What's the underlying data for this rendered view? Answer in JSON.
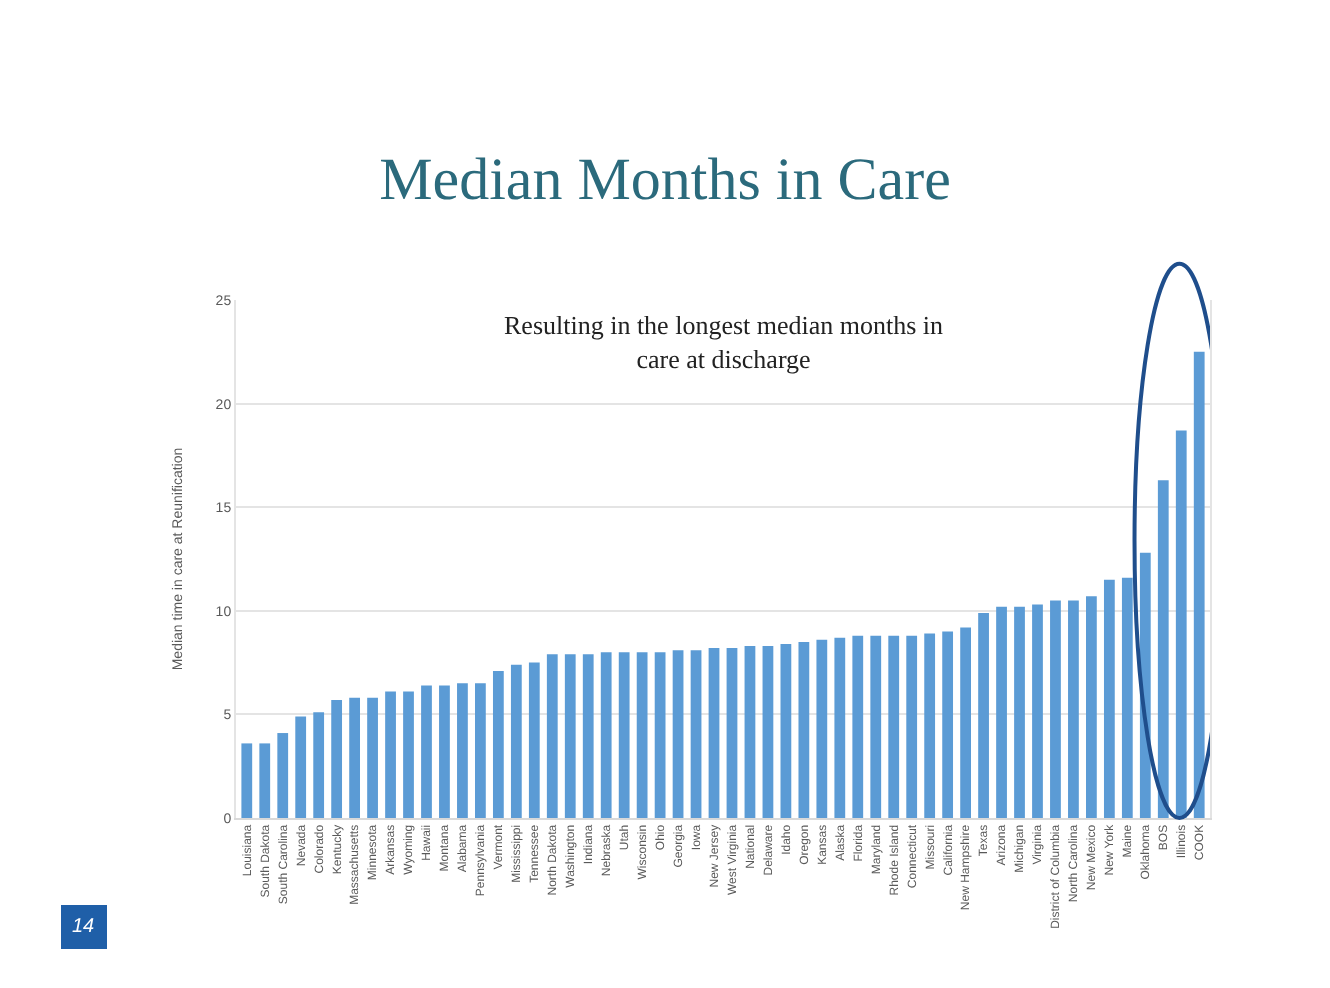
{
  "chart_data": {
    "type": "bar",
    "title": "Median Months in Care",
    "ylabel": "Median time in care at Reunification",
    "categories": [
      "Louisiana",
      "South Dakota",
      "South Carolina",
      "Nevada",
      "Colorado",
      "Kentucky",
      "Massachusetts",
      "Minnesota",
      "Arkansas",
      "Wyoming",
      "Hawaii",
      "Montana",
      "Alabama",
      "Pennsylvania",
      "Vermont",
      "Mississippi",
      "Tennessee",
      "North Dakota",
      "Washington",
      "Indiana",
      "Nebraska",
      "Utah",
      "Wisconsin",
      "Ohio",
      "Georgia",
      "Iowa",
      "New Jersey",
      "West Virginia",
      "National",
      "Delaware",
      "Idaho",
      "Oregon",
      "Kansas",
      "Alaska",
      "Florida",
      "Maryland",
      "Rhode Island",
      "Connecticut",
      "Missouri",
      "California",
      "New Hampshire",
      "Texas",
      "Arizona",
      "Michigan",
      "Virginia",
      "District of Columbia",
      "North Carolina",
      "New Mexico",
      "New York",
      "Maine",
      "Oklahoma",
      "BOS",
      "Illinois",
      "COOK"
    ],
    "values": [
      3.6,
      3.6,
      4.1,
      4.9,
      5.1,
      5.7,
      5.8,
      5.8,
      6.1,
      6.1,
      6.4,
      6.4,
      6.5,
      6.5,
      7.1,
      7.4,
      7.5,
      7.9,
      7.9,
      7.9,
      8.0,
      8.0,
      8.0,
      8.0,
      8.1,
      8.1,
      8.2,
      8.2,
      8.3,
      8.3,
      8.4,
      8.5,
      8.6,
      8.7,
      8.8,
      8.8,
      8.8,
      8.8,
      8.9,
      9.0,
      9.2,
      9.9,
      10.2,
      10.2,
      10.3,
      10.5,
      10.5,
      10.7,
      11.5,
      11.6,
      12.8,
      16.3,
      18.7,
      22.5
    ],
    "color": "#5b9bd5",
    "ylim": [
      0,
      25
    ],
    "yticks": [
      0,
      5,
      10,
      15,
      20,
      25
    ],
    "grid": "y",
    "annotations": [
      "Resulting in the longest median months in\ncare at discharge",
      "14"
    ]
  }
}
